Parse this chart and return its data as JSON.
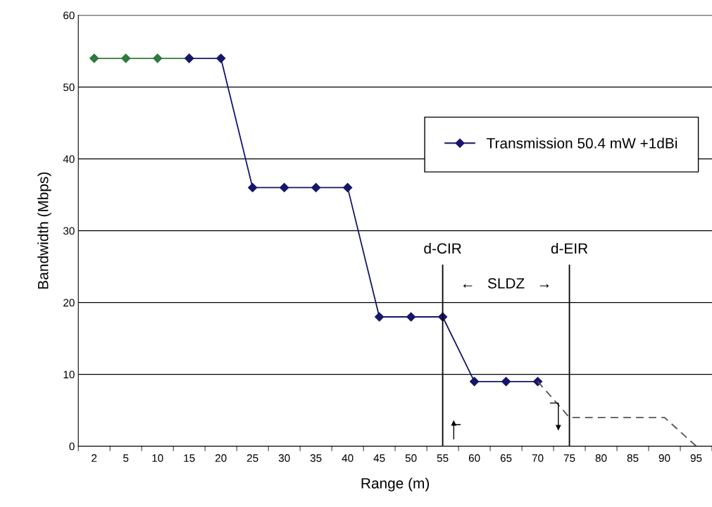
{
  "chart_data": {
    "type": "line",
    "xlabel": "Range (m)",
    "ylabel": "Bandwidth (Mbps)",
    "categories": [
      "2",
      "5",
      "10",
      "15",
      "20",
      "25",
      "30",
      "35",
      "40",
      "45",
      "50",
      "55",
      "60",
      "65",
      "70",
      "75",
      "80",
      "85",
      "90",
      "95"
    ],
    "series": [
      {
        "color": "#2e7a3c",
        "values": [
          54,
          54,
          54,
          54,
          null,
          null,
          null,
          null,
          null,
          null,
          null,
          null,
          null,
          null,
          null,
          null,
          null,
          null,
          null,
          null
        ],
        "line_style": "solid"
      },
      {
        "name": "Transmission 50.4 mW +1dBi",
        "color": "#16166a",
        "values": [
          null,
          null,
          null,
          54,
          54,
          36,
          36,
          36,
          36,
          18,
          18,
          18,
          9,
          9,
          9,
          null,
          null,
          null,
          null,
          null
        ],
        "line_style": "solid"
      },
      {
        "color": "#555555",
        "values": [
          null,
          null,
          null,
          null,
          null,
          null,
          null,
          null,
          null,
          null,
          null,
          null,
          null,
          null,
          9,
          4,
          4,
          4,
          4,
          0
        ],
        "line_style": "dashed",
        "marker": "none"
      }
    ],
    "ylim": [
      0,
      60
    ],
    "yticks": [
      0,
      10,
      20,
      30,
      40,
      50,
      60
    ],
    "grid": "y",
    "legend": "right",
    "marker": "diamond",
    "ref_lines": [
      {
        "axis": "x",
        "value": "55",
        "label": "d-CIR",
        "color": "#000000"
      },
      {
        "axis": "x",
        "value": "75",
        "label": "d-EIR",
        "color": "#000000"
      }
    ],
    "annotations": [
      "←   SLDZ   →"
    ]
  }
}
